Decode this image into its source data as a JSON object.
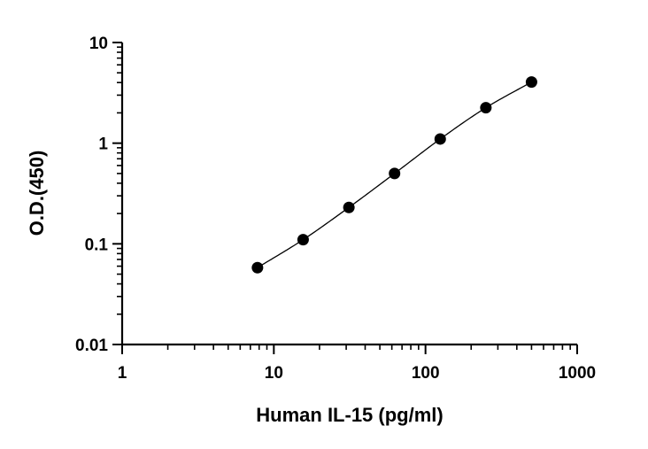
{
  "chart_data": {
    "type": "scatter",
    "title": "",
    "xlabel": "Human IL-15 (pg/ml)",
    "ylabel": "O.D.(450)",
    "xscale": "log",
    "yscale": "log",
    "xlim": [
      1,
      1000
    ],
    "ylim": [
      0.01,
      10
    ],
    "x_ticks": [
      1,
      10,
      100,
      1000
    ],
    "x_tick_labels": [
      "1",
      "10",
      "100",
      "1000"
    ],
    "y_ticks": [
      0.01,
      0.1,
      1,
      10
    ],
    "y_tick_labels": [
      "0.01",
      "0.1",
      "1",
      "10"
    ],
    "grid": false,
    "legend": "none",
    "series": [
      {
        "x": [
          7.8,
          15.6,
          31.25,
          62.5,
          125,
          250,
          500
        ],
        "y": [
          0.058,
          0.11,
          0.23,
          0.5,
          1.1,
          2.25,
          4.05
        ],
        "marker": "circle",
        "fit_line": true,
        "color": "#000000"
      }
    ]
  }
}
